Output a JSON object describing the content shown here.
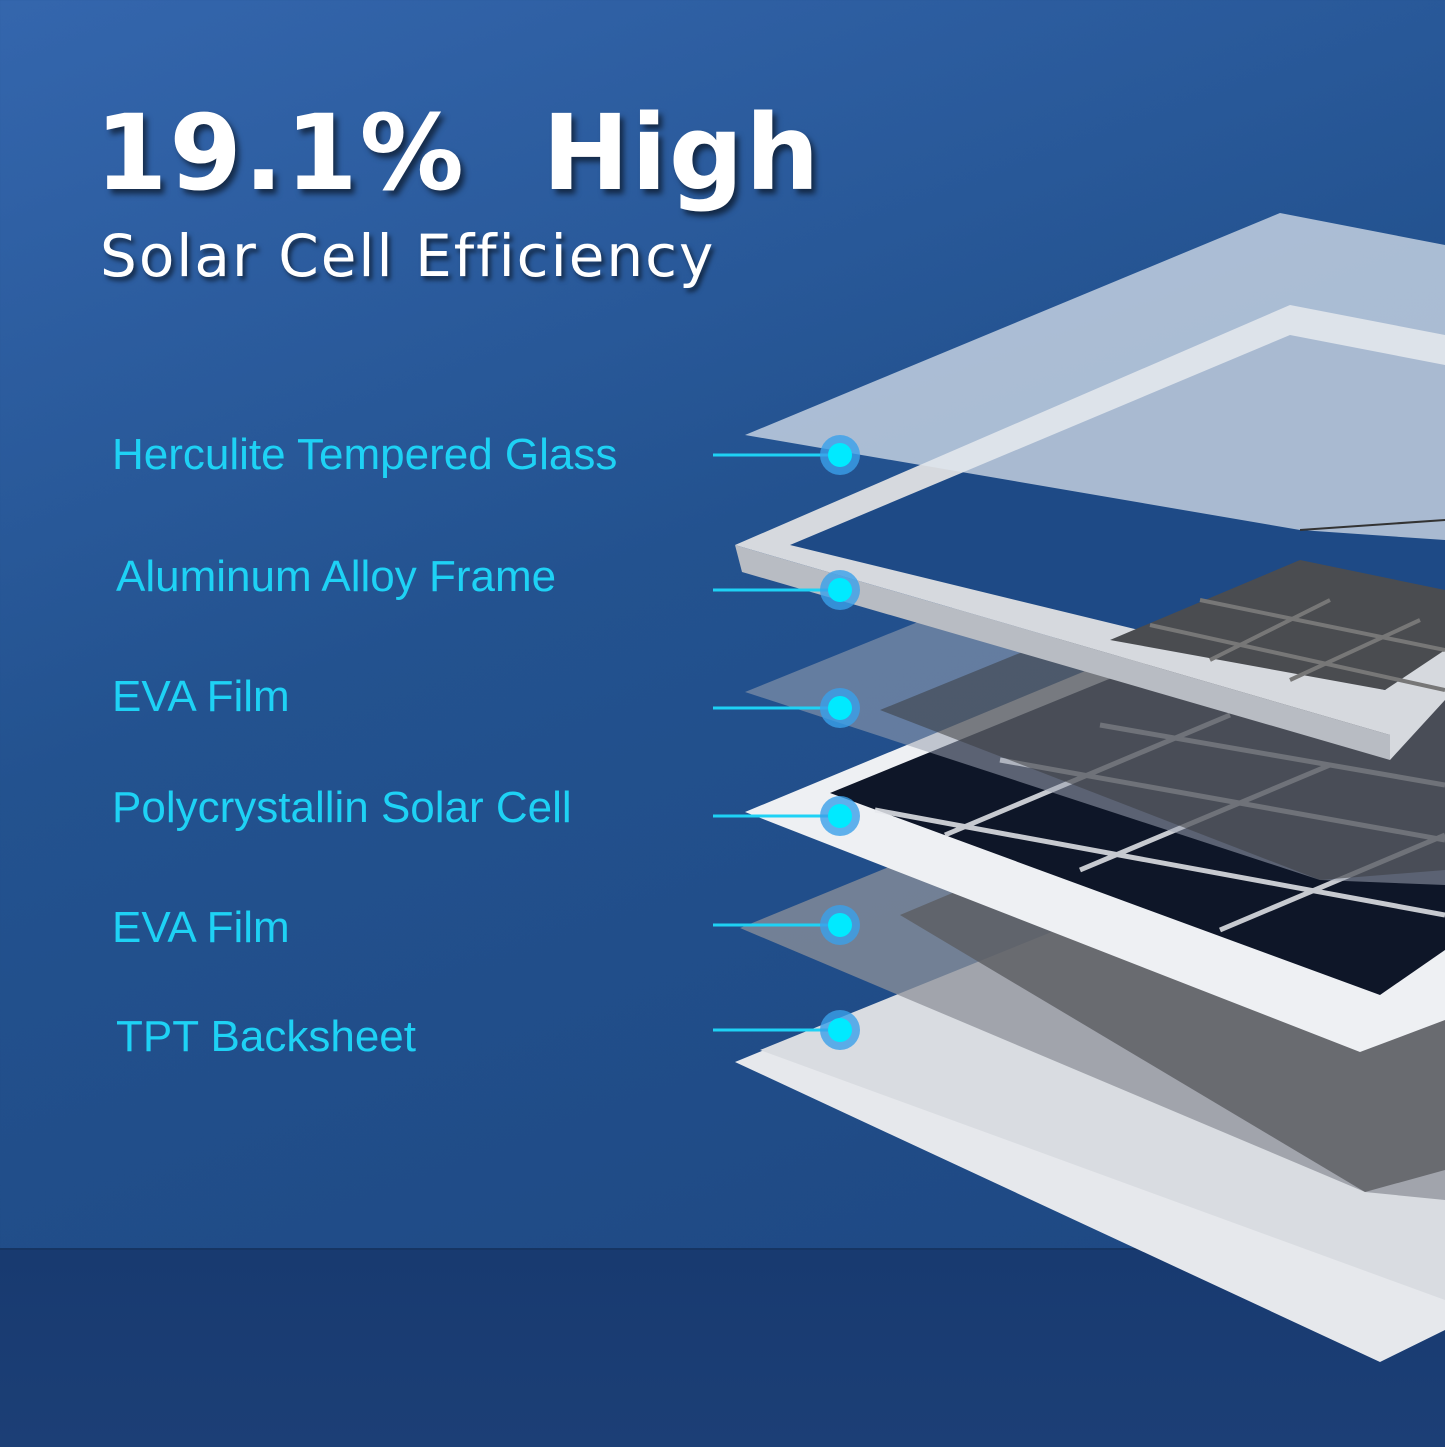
{
  "headline": {
    "title": "19.1%  High",
    "subtitle": "Solar Cell Efficiency"
  },
  "colors": {
    "label": "#1ed2f5",
    "marker": "#00eaff",
    "marker_ring": "#3aa0ea",
    "background": "#23528f"
  },
  "layers": [
    {
      "label": "Herculite Tempered Glass"
    },
    {
      "label": "Aluminum Alloy Frame"
    },
    {
      "label": "EVA Film"
    },
    {
      "label": "Polycrystallin Solar Cell"
    },
    {
      "label": "EVA Film"
    },
    {
      "label": "TPT Backsheet"
    }
  ]
}
